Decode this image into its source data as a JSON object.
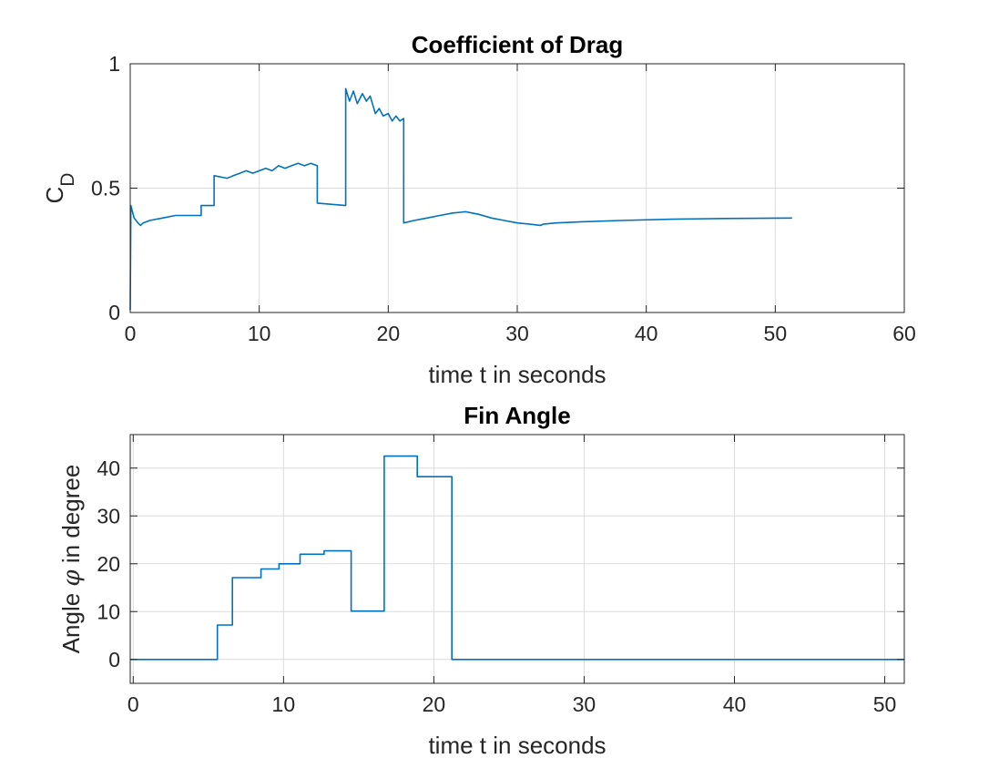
{
  "chart_data": [
    {
      "type": "line",
      "title": "Coefficient of Drag",
      "xlabel": "time t in seconds",
      "ylabel_main": "C",
      "ylabel_sub": "D",
      "xlim": [
        0,
        60
      ],
      "ylim": [
        0,
        1
      ],
      "xticks": [
        0,
        10,
        20,
        30,
        40,
        50,
        60
      ],
      "yticks": [
        0,
        0.5,
        1
      ],
      "xtick_labels": [
        "0",
        "10",
        "20",
        "30",
        "40",
        "50",
        "60"
      ],
      "ytick_labels": [
        "0",
        "0.5",
        "1"
      ],
      "grid": true,
      "color": "#0072bd",
      "series": [
        {
          "x": [
            0,
            0.05,
            0.1,
            0.3,
            0.6,
            0.8,
            1.0,
            1.5,
            2.5,
            3.5,
            5.5,
            5.5,
            6.5,
            6.5,
            7.5,
            8.0,
            8.5,
            9.0,
            9.5,
            10.0,
            10.5,
            11.0,
            11.5,
            12.0,
            12.5,
            13.0,
            13.5,
            14.0,
            14.5,
            14.5,
            16.7,
            16.7,
            17.0,
            17.3,
            17.6,
            18.0,
            18.3,
            18.6,
            19.0,
            19.3,
            19.6,
            20.0,
            20.3,
            20.6,
            20.9,
            21.2,
            21.2,
            22.0,
            23.0,
            24.0,
            25.0,
            26.0,
            26.5,
            27.0,
            28.0,
            29.0,
            30.0,
            31.0,
            31.8,
            32.0,
            33.0,
            35.0,
            38.0,
            42.0,
            46.0,
            51.3
          ],
          "y": [
            0.01,
            0.43,
            0.42,
            0.38,
            0.36,
            0.35,
            0.36,
            0.37,
            0.38,
            0.39,
            0.39,
            0.43,
            0.43,
            0.55,
            0.54,
            0.55,
            0.56,
            0.57,
            0.56,
            0.57,
            0.58,
            0.57,
            0.59,
            0.58,
            0.59,
            0.6,
            0.59,
            0.6,
            0.59,
            0.44,
            0.43,
            0.9,
            0.85,
            0.89,
            0.84,
            0.88,
            0.85,
            0.87,
            0.8,
            0.82,
            0.79,
            0.8,
            0.77,
            0.79,
            0.77,
            0.78,
            0.36,
            0.37,
            0.38,
            0.39,
            0.4,
            0.405,
            0.4,
            0.395,
            0.38,
            0.37,
            0.36,
            0.355,
            0.35,
            0.355,
            0.36,
            0.365,
            0.37,
            0.375,
            0.378,
            0.38
          ]
        }
      ]
    },
    {
      "type": "line",
      "title": "Fin Angle",
      "xlabel": "time t in seconds",
      "ylabel_parts": [
        "Angle ",
        "φ",
        " in degree"
      ],
      "xlim": [
        -0.2,
        51.3
      ],
      "ylim": [
        -5,
        47
      ],
      "xticks": [
        0,
        10,
        20,
        30,
        40,
        50
      ],
      "yticks": [
        0,
        10,
        20,
        30,
        40
      ],
      "xtick_labels": [
        "0",
        "10",
        "20",
        "30",
        "40",
        "50"
      ],
      "ytick_labels": [
        "0",
        "10",
        "20",
        "30",
        "40"
      ],
      "grid": true,
      "color": "#0072bd",
      "series": [
        {
          "step": true,
          "x": [
            -0.2,
            5.6,
            6.6,
            8.5,
            9.7,
            11.1,
            12.7,
            14.5,
            16.7,
            18.9,
            21.2,
            51.3
          ],
          "y": [
            0,
            7.2,
            17.1,
            18.9,
            20.0,
            22.0,
            22.7,
            10.1,
            42.5,
            38.2,
            0.0,
            0.0
          ]
        }
      ]
    }
  ]
}
